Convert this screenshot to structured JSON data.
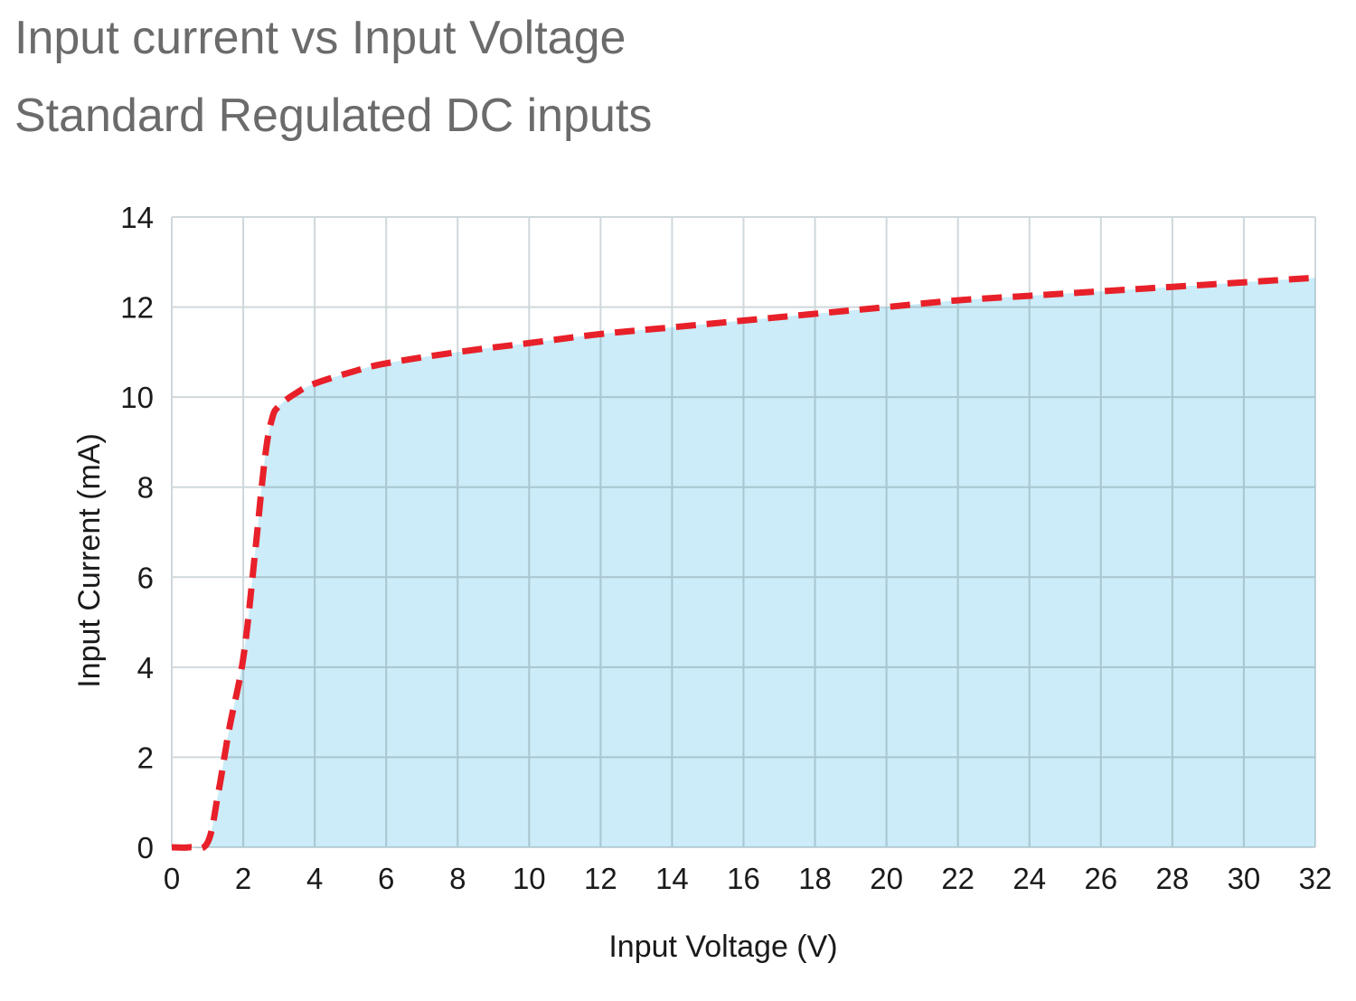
{
  "chart_data": {
    "type": "area",
    "title": "Input current vs Input Voltage",
    "subtitle": "Standard Regulated DC inputs",
    "xlabel": "Input Voltage (V)",
    "ylabel": "Input Current (mA)",
    "xlim": [
      0,
      32
    ],
    "ylim": [
      0,
      14
    ],
    "x_ticks": [
      0,
      2,
      4,
      6,
      8,
      10,
      12,
      14,
      16,
      18,
      20,
      22,
      24,
      26,
      28,
      30,
      32
    ],
    "y_ticks": [
      0,
      2,
      4,
      6,
      8,
      10,
      12,
      14
    ],
    "grid": true,
    "x": [
      0,
      0.5,
      1.0,
      1.3,
      1.6,
      2.0,
      2.3,
      2.6,
      2.8,
      3.0,
      3.5,
      4.0,
      5.0,
      6.0,
      8.0,
      10.0,
      12.0,
      14.0,
      16.0,
      18.0,
      20.0,
      22.0,
      24.0,
      26.0,
      28.0,
      30.0,
      32.0
    ],
    "series": [
      {
        "values": [
          0,
          0,
          0.1,
          1.2,
          2.6,
          4.2,
          6.3,
          8.6,
          9.5,
          9.8,
          10.1,
          10.3,
          10.55,
          10.75,
          11.0,
          11.2,
          11.4,
          11.55,
          11.7,
          11.85,
          12.0,
          12.15,
          12.25,
          12.35,
          12.45,
          12.55,
          12.65
        ]
      }
    ],
    "colors": {
      "fill": "#cbecf8",
      "line": "#e82029",
      "grid": "#cfd8dc",
      "grid_inner": "#a9c7d2"
    }
  }
}
